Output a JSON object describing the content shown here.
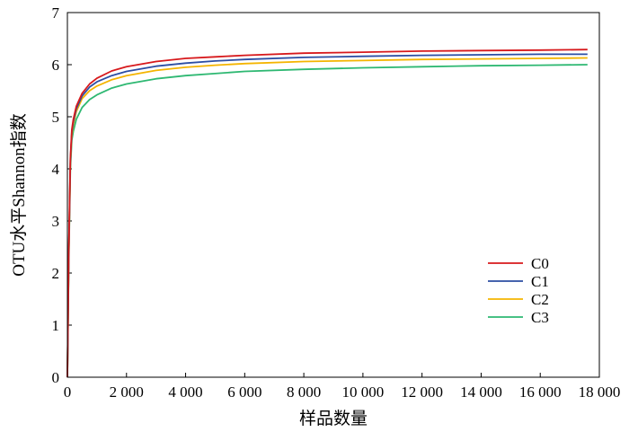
{
  "chart_data": {
    "type": "line",
    "xlabel": "样品数量",
    "ylabel": "OTU水平Shannon指数",
    "xlim": [
      0,
      18000
    ],
    "ylim": [
      0,
      7
    ],
    "xticks": [
      0,
      2000,
      4000,
      6000,
      8000,
      10000,
      12000,
      14000,
      16000,
      18000
    ],
    "xtick_labels": [
      "0",
      "2 000",
      "4 000",
      "6 000",
      "8 000",
      "10 000",
      "12 000",
      "14 000",
      "16 000",
      "18 000"
    ],
    "yticks": [
      0,
      1,
      2,
      3,
      4,
      5,
      6,
      7
    ],
    "ytick_labels": [
      "0",
      "1",
      "2",
      "3",
      "4",
      "5",
      "6",
      "7"
    ],
    "grid": false,
    "legend_position": "right",
    "x": [
      0,
      50,
      100,
      150,
      200,
      300,
      500,
      750,
      1000,
      1500,
      2000,
      3000,
      4000,
      5000,
      6000,
      8000,
      10000,
      12000,
      14000,
      16000,
      17600
    ],
    "series": [
      {
        "name": "C0",
        "color": "#d7191c",
        "values": [
          0,
          2.5,
          4.2,
          4.75,
          4.95,
          5.2,
          5.45,
          5.63,
          5.74,
          5.88,
          5.96,
          6.06,
          6.12,
          6.15,
          6.18,
          6.22,
          6.24,
          6.26,
          6.27,
          6.28,
          6.29
        ]
      },
      {
        "name": "C1",
        "color": "#2c4ea3",
        "values": [
          0,
          2.45,
          4.15,
          4.7,
          4.9,
          5.15,
          5.4,
          5.57,
          5.67,
          5.79,
          5.87,
          5.97,
          6.03,
          6.07,
          6.1,
          6.14,
          6.16,
          6.18,
          6.19,
          6.2,
          6.2
        ]
      },
      {
        "name": "C2",
        "color": "#f4b400",
        "values": [
          0,
          2.4,
          4.1,
          4.65,
          4.85,
          5.1,
          5.35,
          5.5,
          5.59,
          5.71,
          5.79,
          5.89,
          5.95,
          5.99,
          6.02,
          6.06,
          6.08,
          6.1,
          6.11,
          6.12,
          6.13
        ]
      },
      {
        "name": "C3",
        "color": "#2eb872",
        "values": [
          0,
          2.3,
          4.0,
          4.55,
          4.72,
          4.95,
          5.18,
          5.33,
          5.42,
          5.55,
          5.63,
          5.73,
          5.79,
          5.83,
          5.87,
          5.91,
          5.94,
          5.96,
          5.98,
          5.99,
          6.0
        ]
      }
    ]
  }
}
